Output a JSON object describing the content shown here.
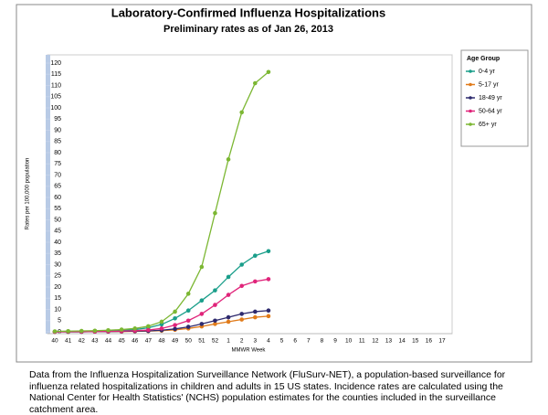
{
  "chart_data": {
    "type": "line",
    "title": "Laboratory-Confirmed Influenza Hospitalizations",
    "subtitle": "Preliminary rates as of Jan 26, 2013",
    "ylabel": "Rates per 100,000 population",
    "xlabel": "MMWR Week",
    "legend_title": "Age Group",
    "legend": "right",
    "categories": [
      "40",
      "41",
      "42",
      "43",
      "44",
      "45",
      "46",
      "47",
      "48",
      "49",
      "50",
      "51",
      "52",
      "1",
      "2",
      "3",
      "4",
      "5",
      "6",
      "7",
      "8",
      "9",
      "10",
      "11",
      "12",
      "13",
      "14",
      "15",
      "16",
      "17"
    ],
    "ylim": [
      0,
      120
    ],
    "yticks": [
      0,
      5,
      10,
      15,
      20,
      25,
      30,
      35,
      40,
      45,
      50,
      55,
      60,
      65,
      70,
      75,
      80,
      85,
      90,
      95,
      100,
      105,
      110,
      115,
      120
    ],
    "series": [
      {
        "name": "0-4 yr",
        "color": "#1a9e8a",
        "values": [
          0.1,
          0.2,
          0.2,
          0.3,
          0.4,
          0.6,
          1,
          1.8,
          3.3,
          6,
          9.5,
          14,
          18.5,
          24.5,
          30,
          34,
          36,
          null,
          null,
          null,
          null,
          null,
          null,
          null,
          null,
          null,
          null,
          null,
          null,
          null
        ]
      },
      {
        "name": "5-17 yr",
        "color": "#e07b1a",
        "values": [
          0,
          0,
          0,
          0.1,
          0.1,
          0.1,
          0.2,
          0.3,
          0.5,
          0.9,
          1.5,
          2.4,
          3.5,
          4.5,
          5.5,
          6.5,
          7,
          null,
          null,
          null,
          null,
          null,
          null,
          null,
          null,
          null,
          null,
          null,
          null,
          null
        ]
      },
      {
        "name": "18-49 yr",
        "color": "#2e2a6e",
        "values": [
          0,
          0,
          0,
          0.1,
          0.1,
          0.2,
          0.3,
          0.4,
          0.7,
          1.3,
          2.2,
          3.5,
          5,
          6.5,
          8,
          9,
          9.5,
          null,
          null,
          null,
          null,
          null,
          null,
          null,
          null,
          null,
          null,
          null,
          null,
          null
        ]
      },
      {
        "name": "50-64 yr",
        "color": "#e0247a",
        "values": [
          0,
          0.1,
          0.1,
          0.1,
          0.2,
          0.3,
          0.5,
          0.8,
          1.5,
          3,
          5,
          8,
          12,
          16.5,
          20.5,
          22.5,
          23.5,
          null,
          null,
          null,
          null,
          null,
          null,
          null,
          null,
          null,
          null,
          null,
          null,
          null
        ]
      },
      {
        "name": "65+ yr",
        "color": "#7cb733",
        "values": [
          0.2,
          0.3,
          0.4,
          0.5,
          0.7,
          1,
          1.5,
          2.5,
          4.5,
          9,
          17,
          29,
          53,
          77,
          98,
          111,
          116,
          null,
          null,
          null,
          null,
          null,
          null,
          null,
          null,
          null,
          null,
          null,
          null,
          null
        ]
      }
    ],
    "note": "Data from the Influenza Hospitalization Surveillance Network (FluSurv-NET), a population-based surveillance for influenza related hospitalizations in children and adults in 15 US states.  Incidence rates are calculated using the National Center for Health Statistics' (NCHS) population estimates for the counties included in the surveillance catchment area."
  }
}
